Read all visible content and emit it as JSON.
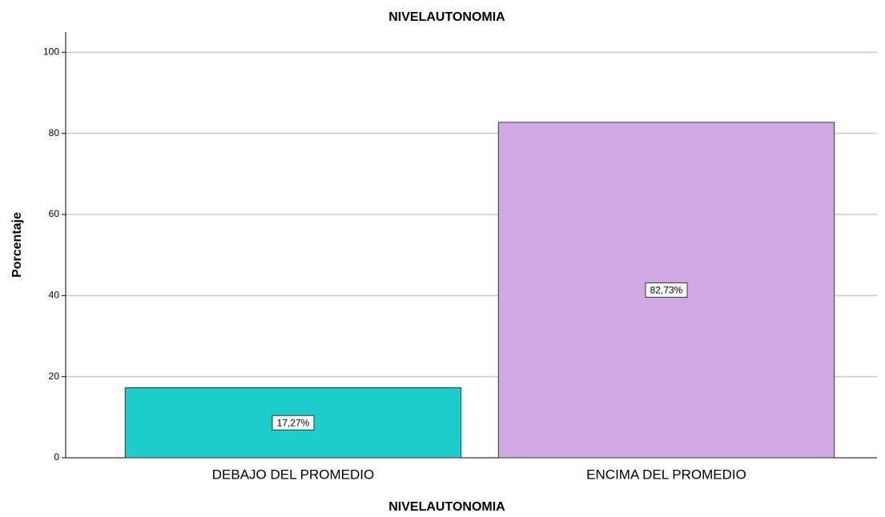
{
  "chart_data": {
    "type": "bar",
    "title": "NIVELAUTONOMIA",
    "x_label": "NIVELAUTONOMIA",
    "y_label": "Porcentaje",
    "categories": [
      "DEBAJO DEL PROMEDIO",
      "ENCIMA DEL PROMEDIO"
    ],
    "values": [
      17.27,
      82.73
    ],
    "value_labels": [
      "17,27%",
      "82,73%"
    ],
    "colors": [
      "#1ccdcc",
      "#d0a9e4"
    ],
    "ylim": [
      0,
      105
    ],
    "yticks": [
      0,
      20,
      40,
      60,
      80,
      100
    ],
    "grid": true
  }
}
